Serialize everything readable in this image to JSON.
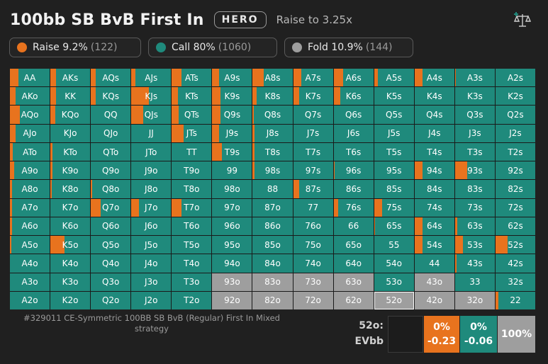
{
  "header": {
    "title": "100bb SB BvB First In",
    "hero_label": "HERO",
    "action_text": "Raise to 3.25x"
  },
  "legend": [
    {
      "name": "raise",
      "label": "Raise 9.2%",
      "count": "(122)",
      "color": "#e8731e"
    },
    {
      "name": "call",
      "label": "Call 80%",
      "count": "(1060)",
      "color": "#1f8a7c"
    },
    {
      "name": "fold",
      "label": "Fold 10.9%",
      "count": "(144)",
      "color": "#9e9e9e"
    }
  ],
  "grid": {
    "rows": [
      [
        "AA",
        "AKs",
        "AQs",
        "AJs",
        "ATs",
        "A9s",
        "A8s",
        "A7s",
        "A6s",
        "A5s",
        "A4s",
        "A3s",
        "A2s"
      ],
      [
        "AKo",
        "KK",
        "KQs",
        "KJs",
        "KTs",
        "K9s",
        "K8s",
        "K7s",
        "K6s",
        "K5s",
        "K4s",
        "K3s",
        "K2s"
      ],
      [
        "AQo",
        "KQo",
        "QQ",
        "QJs",
        "QTs",
        "Q9s",
        "Q8s",
        "Q7s",
        "Q6s",
        "Q5s",
        "Q4s",
        "Q3s",
        "Q2s"
      ],
      [
        "AJo",
        "KJo",
        "QJo",
        "JJ",
        "JTs",
        "J9s",
        "J8s",
        "J7s",
        "J6s",
        "J5s",
        "J4s",
        "J3s",
        "J2s"
      ],
      [
        "ATo",
        "KTo",
        "QTo",
        "JTo",
        "TT",
        "T9s",
        "T8s",
        "T7s",
        "T6s",
        "T5s",
        "T4s",
        "T3s",
        "T2s"
      ],
      [
        "A9o",
        "K9o",
        "Q9o",
        "J9o",
        "T9o",
        "99",
        "98s",
        "97s",
        "96s",
        "95s",
        "94s",
        "93s",
        "92s"
      ],
      [
        "A8o",
        "K8o",
        "Q8o",
        "J8o",
        "T8o",
        "98o",
        "88",
        "87s",
        "86s",
        "85s",
        "84s",
        "83s",
        "82s"
      ],
      [
        "A7o",
        "K7o",
        "Q7o",
        "J7o",
        "T7o",
        "97o",
        "87o",
        "77",
        "76s",
        "75s",
        "74s",
        "73s",
        "72s"
      ],
      [
        "A6o",
        "K6o",
        "Q6o",
        "J6o",
        "T6o",
        "96o",
        "86o",
        "76o",
        "66",
        "65s",
        "64s",
        "63s",
        "62s"
      ],
      [
        "A5o",
        "K5o",
        "Q5o",
        "J5o",
        "T5o",
        "95o",
        "85o",
        "75o",
        "65o",
        "55",
        "54s",
        "53s",
        "52s"
      ],
      [
        "A4o",
        "K4o",
        "Q4o",
        "J4o",
        "T4o",
        "94o",
        "84o",
        "74o",
        "64o",
        "54o",
        "44",
        "43s",
        "42s"
      ],
      [
        "A3o",
        "K3o",
        "Q3o",
        "J3o",
        "T3o",
        "93o",
        "83o",
        "73o",
        "63o",
        "53o",
        "43o",
        "33",
        "32s"
      ],
      [
        "A2o",
        "K2o",
        "Q2o",
        "J2o",
        "T2o",
        "92o",
        "82o",
        "72o",
        "62o",
        "52o",
        "42o",
        "32o",
        "22"
      ]
    ],
    "raise_fraction": [
      [
        0.22,
        0.15,
        0.12,
        0.1,
        0.25,
        0.18,
        0.28,
        0.2,
        0.24,
        0.1,
        0.2,
        0.02,
        0
      ],
      [
        0.15,
        0.15,
        0.12,
        0.45,
        0.15,
        0.2,
        0.1,
        0.15,
        0.16,
        0,
        0,
        0,
        0
      ],
      [
        0.25,
        0.12,
        0,
        0.3,
        0.18,
        0.2,
        0.03,
        0,
        0,
        0,
        0,
        0,
        0
      ],
      [
        0.15,
        0,
        0,
        0,
        0.3,
        0.18,
        0.05,
        0,
        0,
        0,
        0,
        0,
        0
      ],
      [
        0.08,
        0.06,
        0,
        0,
        0,
        0.25,
        0.05,
        0,
        0,
        0,
        0,
        0,
        0
      ],
      [
        0.1,
        0.05,
        0,
        0,
        0,
        0,
        0.05,
        0,
        0.03,
        0,
        0.2,
        0.3,
        0
      ],
      [
        0.05,
        0.04,
        0.04,
        0,
        0,
        0,
        0,
        0.15,
        0,
        0,
        0,
        0,
        0
      ],
      [
        0.05,
        0,
        0.25,
        0.2,
        0.25,
        0,
        0,
        0,
        0.12,
        0.2,
        0,
        0,
        0
      ],
      [
        0.05,
        0,
        0,
        0,
        0,
        0,
        0,
        0,
        0,
        0.03,
        0.2,
        0.06,
        0
      ],
      [
        0.03,
        0.35,
        0,
        0,
        0,
        0,
        0,
        0,
        0,
        0,
        0.2,
        0.2,
        0.3
      ],
      [
        0,
        0,
        0,
        0,
        0,
        0,
        0,
        0,
        0,
        0,
        0,
        0.03,
        0
      ],
      [
        0,
        0,
        0,
        0,
        0,
        0,
        0,
        0,
        0,
        0,
        0,
        0,
        0
      ],
      [
        0,
        0,
        0,
        0,
        0,
        0,
        0,
        0,
        0,
        0,
        0,
        0,
        0.08
      ]
    ],
    "fold_hands": [
      "93o",
      "83o",
      "73o",
      "63o",
      "43o",
      "92o",
      "82o",
      "72o",
      "62o",
      "52o",
      "42o",
      "32o"
    ],
    "selected_hand": "52o"
  },
  "footer": {
    "strategy_text": "#329011 CE-Symmetric 100BB SB BvB (Regular) First In Mixed strategy"
  },
  "detail": {
    "hand_label": "52o:",
    "ev_label": "EVbb",
    "raise_pct": "0%",
    "raise_ev": "-0.23",
    "call_pct": "0%",
    "call_ev": "-0.06",
    "fold_pct": "100%"
  }
}
